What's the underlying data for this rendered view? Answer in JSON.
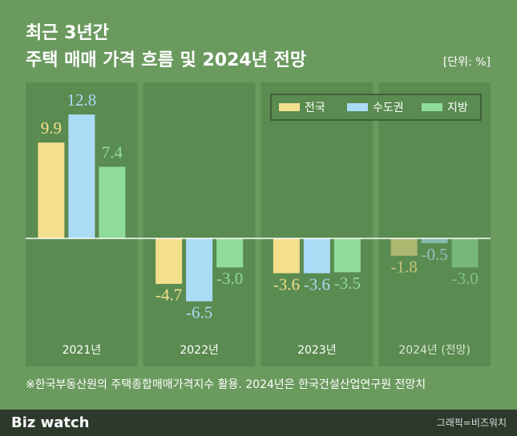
{
  "chart_data": {
    "type": "bar",
    "title": "최근 3년간",
    "subtitle": "주택 매매 가격 흐름 및 2024년 전망",
    "unit_label": "[단위: %]",
    "categories": [
      "2021년",
      "2022년",
      "2023년",
      "2024년 (전망)"
    ],
    "series": [
      {
        "name": "전국",
        "color": "#f4df8c",
        "values": [
          9.9,
          -4.7,
          -3.6,
          -1.8
        ],
        "value_labels": [
          "9.9",
          "-4.7",
          "-3.6",
          "-1.8"
        ]
      },
      {
        "name": "수도권",
        "color": "#aadcf6",
        "values": [
          12.8,
          -6.5,
          -3.6,
          -0.5
        ],
        "value_labels": [
          "12.8",
          "-6.5",
          "-3.6",
          "-0.5"
        ]
      },
      {
        "name": "지방",
        "color": "#8fdc9c",
        "values": [
          7.4,
          -3.0,
          -3.5,
          -3.0
        ],
        "value_labels": [
          "7.4",
          "-3.0",
          "-3.5",
          "-3.0"
        ]
      }
    ],
    "legend": "top-right",
    "note": "※한국부동산원의 주택종합매매가격지수 활용. 2024년은 한국건설산업연구원 전망치"
  },
  "footer": {
    "brand": "Biz watch",
    "credit": "그래픽=비즈워치"
  }
}
